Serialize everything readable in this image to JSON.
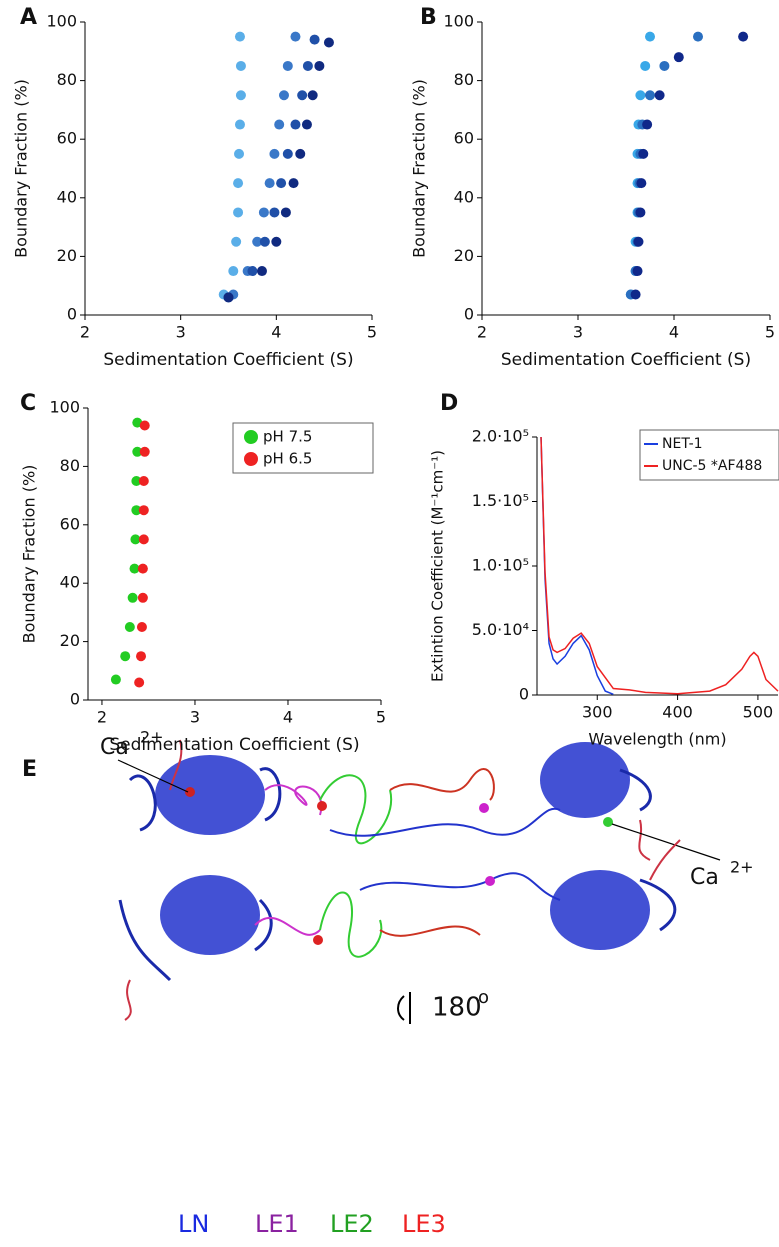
{
  "chart_data": [
    {
      "type": "scatter",
      "panel": "A",
      "xlabel": "Sedimentation Coefficient (S)",
      "ylabel": "Boundary Fraction (%)",
      "xlim": [
        2,
        5
      ],
      "xticks": [
        2,
        3,
        4,
        5
      ],
      "ylim": [
        0,
        100
      ],
      "yticks": [
        0,
        20,
        40,
        60,
        80,
        100
      ],
      "series": [
        {
          "color": "#5aaee8",
          "x": [
            3.45,
            3.55,
            3.58,
            3.6,
            3.6,
            3.61,
            3.62,
            3.63,
            3.63,
            3.62
          ],
          "values": [
            7,
            15,
            25,
            35,
            45,
            55,
            65,
            75,
            85,
            95
          ]
        },
        {
          "color": "#3a78c8",
          "x": [
            3.55,
            3.7,
            3.8,
            3.87,
            3.93,
            3.98,
            4.03,
            4.08,
            4.12,
            4.2
          ],
          "values": [
            7,
            15,
            25,
            35,
            45,
            55,
            65,
            75,
            85,
            95
          ]
        },
        {
          "color": "#2050a8",
          "x": [
            3.5,
            3.75,
            3.88,
            3.98,
            4.05,
            4.12,
            4.2,
            4.27,
            4.33,
            4.4
          ],
          "values": [
            6,
            15,
            25,
            35,
            45,
            55,
            65,
            75,
            85,
            94
          ]
        },
        {
          "color": "#102a80",
          "x": [
            3.5,
            3.85,
            4.0,
            4.1,
            4.18,
            4.25,
            4.32,
            4.38,
            4.45,
            4.55
          ],
          "values": [
            6,
            15,
            25,
            35,
            45,
            55,
            65,
            75,
            85,
            93
          ]
        }
      ]
    },
    {
      "type": "scatter",
      "panel": "B",
      "xlabel": "Sedimentation Coefficient (S)",
      "ylabel": "Boundary Fraction (%)",
      "xlim": [
        2,
        5
      ],
      "xticks": [
        2,
        3,
        4,
        5
      ],
      "ylim": [
        0,
        100
      ],
      "yticks": [
        0,
        20,
        40,
        60,
        80,
        100
      ],
      "series": [
        {
          "color": "#39a8e8",
          "x": [
            3.55,
            3.6,
            3.6,
            3.62,
            3.62,
            3.62,
            3.63,
            3.65,
            3.7,
            3.75
          ],
          "values": [
            7,
            15,
            25,
            35,
            45,
            55,
            65,
            75,
            85,
            95
          ]
        },
        {
          "color": "#2a6fc0",
          "x": [
            3.55,
            3.6,
            3.62,
            3.63,
            3.64,
            3.65,
            3.67,
            3.75,
            3.9,
            4.25
          ],
          "values": [
            7,
            15,
            25,
            35,
            45,
            55,
            65,
            75,
            85,
            95
          ]
        },
        {
          "color": "#10288a",
          "x": [
            3.6,
            3.62,
            3.63,
            3.65,
            3.66,
            3.68,
            3.72,
            3.85,
            4.05,
            4.72
          ],
          "values": [
            7,
            15,
            25,
            35,
            45,
            55,
            65,
            75,
            88,
            95
          ]
        }
      ]
    },
    {
      "type": "scatter",
      "panel": "C",
      "xlabel": "Sedimentation Coefficient (S)",
      "ylabel": "Boundary Fraction (%)",
      "xlim": [
        1.85,
        5
      ],
      "xticks": [
        2,
        3,
        4,
        5
      ],
      "ylim": [
        0,
        100
      ],
      "yticks": [
        0,
        20,
        40,
        60,
        80,
        100
      ],
      "legend": "top-right",
      "series": [
        {
          "name": "pH 7.5",
          "color": "#22cc22",
          "x": [
            2.15,
            2.25,
            2.3,
            2.33,
            2.35,
            2.36,
            2.37,
            2.37,
            2.38,
            2.38
          ],
          "values": [
            7,
            15,
            25,
            35,
            45,
            55,
            65,
            75,
            85,
            95
          ]
        },
        {
          "name": "pH 6.5",
          "color": "#ee2222",
          "x": [
            2.4,
            2.42,
            2.43,
            2.44,
            2.44,
            2.45,
            2.45,
            2.45,
            2.46,
            2.46
          ],
          "values": [
            6,
            15,
            25,
            35,
            45,
            55,
            65,
            75,
            85,
            94
          ]
        }
      ]
    },
    {
      "type": "line",
      "panel": "D",
      "xlabel": "Wavelength (nm)",
      "ylabel": "Extintion Coefficient (M⁻¹cm⁻¹)",
      "xlim": [
        225,
        525
      ],
      "xticks": [
        300,
        400,
        500
      ],
      "ylim": [
        0,
        200000
      ],
      "yticks": [
        0,
        {
          "value": 50000,
          "label": "5.0·10⁴"
        },
        {
          "value": 100000,
          "label": "1.0·10⁵"
        },
        {
          "value": 150000,
          "label": "1.5·10⁵"
        },
        {
          "value": 200000,
          "label": "2.0·10⁵"
        }
      ],
      "legend": "top-right",
      "series": [
        {
          "name": "NET-1",
          "color": "#1a3fe0",
          "x": [
            230,
            235,
            240,
            245,
            250,
            260,
            270,
            280,
            290,
            300,
            310,
            320
          ],
          "values": [
            200000,
            90000,
            40000,
            28000,
            24000,
            30000,
            40000,
            46000,
            35000,
            15000,
            3000,
            500
          ]
        },
        {
          "name": "UNC-5 *AF488",
          "color": "#ee2222",
          "x": [
            230,
            235,
            240,
            245,
            250,
            260,
            270,
            280,
            290,
            300,
            320,
            340,
            360,
            400,
            440,
            460,
            480,
            490,
            495,
            500,
            510,
            525
          ],
          "values": [
            200000,
            95000,
            45000,
            35000,
            33000,
            36000,
            44000,
            48000,
            40000,
            22000,
            5000,
            4000,
            2000,
            1000,
            3000,
            8000,
            20000,
            30000,
            33000,
            30000,
            12000,
            3000
          ]
        }
      ]
    }
  ],
  "panel_e": {
    "panel": "E",
    "ion": "Ca",
    "charge": "2+",
    "rotation": "180",
    "degree": "o",
    "domains": [
      "LN",
      "LE1",
      "LE2",
      "LE3"
    ]
  }
}
